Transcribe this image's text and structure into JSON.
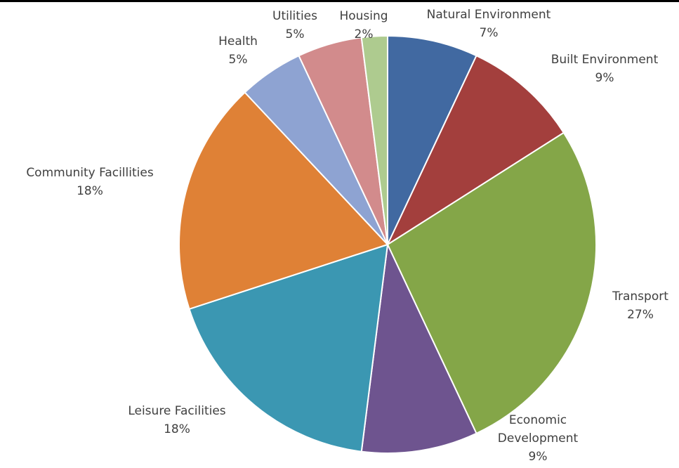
{
  "chart_data": {
    "type": "pie",
    "start_angle_deg": 0,
    "direction": "clockwise",
    "slices": [
      {
        "label": "Natural Environment",
        "value": 7,
        "display": "7%",
        "color": "#4169A1"
      },
      {
        "label": "Built Environment",
        "value": 9,
        "display": "9%",
        "color": "#A33F3D"
      },
      {
        "label": "Transport",
        "value": 27,
        "display": "27%",
        "color": "#84A648"
      },
      {
        "label": "Economic Development",
        "label_lines": [
          "Economic",
          "Development"
        ],
        "value": 9,
        "display": "9%",
        "color": "#6E548F"
      },
      {
        "label": "Leisure Facilities",
        "value": 18,
        "display": "18%",
        "color": "#3B97B2"
      },
      {
        "label": "Community Facillities",
        "value": 18,
        "display": "18%",
        "color": "#DF8136"
      },
      {
        "label": "Health",
        "value": 5,
        "display": "5%",
        "color": "#8EA3D2"
      },
      {
        "label": "Utilities",
        "value": 5,
        "display": "5%",
        "color": "#D28B8C"
      },
      {
        "label": "Housing",
        "value": 2,
        "display": "2%",
        "color": "#AECB8F"
      }
    ]
  }
}
